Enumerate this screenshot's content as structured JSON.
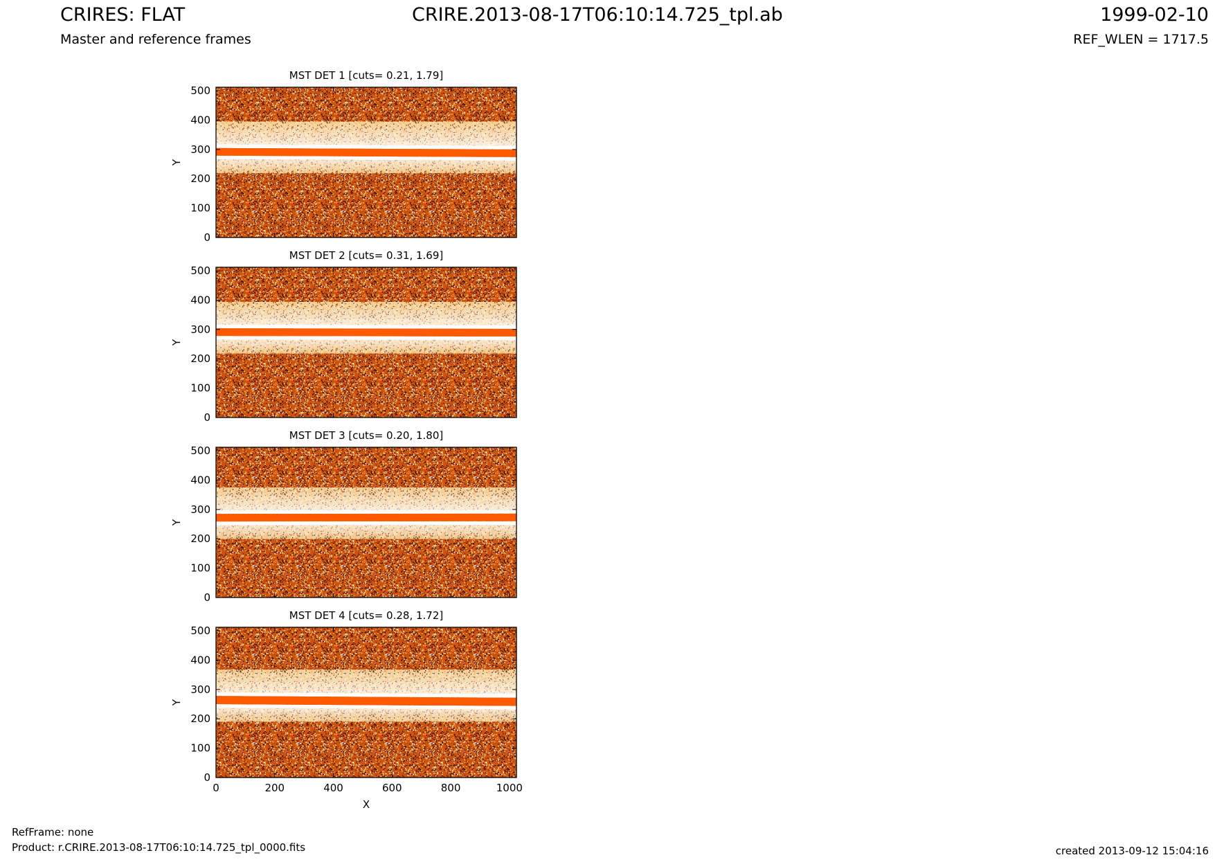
{
  "header": {
    "title": "CRIRES: FLAT",
    "subtitle": "Master and reference frames",
    "file": "CRIRE.2013-08-17T06:10:14.725_tpl.ab",
    "date": "1999-02-10",
    "ref_wlen": "REF_WLEN = 1717.5"
  },
  "footer": {
    "refframe": "RefFrame: none",
    "product": "Product: r.CRIRE.2013-08-17T06:10:14.725_tpl_0000.fits",
    "created": "created 2013-09-12 15:04:16"
  },
  "colors": {
    "band": "#ff5a00",
    "dark": "#2a0a00",
    "mid": "#c2420a",
    "light": "#f7b040",
    "pale": "#fff4cf"
  },
  "chart_data": [
    {
      "type": "heatmap",
      "title": "MST DET 1 [cuts= 0.21, 1.79]",
      "cuts": [
        0.21,
        1.79
      ],
      "colormap": "gist_heat",
      "xlabel": "",
      "ylabel": "Y",
      "xlim": [
        0,
        1024
      ],
      "ylim": [
        0,
        512
      ],
      "xticks": [],
      "yticks": [
        0,
        100,
        200,
        300,
        400,
        500
      ],
      "band": {
        "y_center_start": 292,
        "y_center_end": 287,
        "half_width": 13
      }
    },
    {
      "type": "heatmap",
      "title": "MST DET 2 [cuts= 0.31, 1.69]",
      "cuts": [
        0.31,
        1.69
      ],
      "colormap": "gist_heat",
      "xlabel": "",
      "ylabel": "Y",
      "xlim": [
        0,
        1024
      ],
      "ylim": [
        0,
        512
      ],
      "xticks": [],
      "yticks": [
        0,
        100,
        200,
        300,
        400,
        500
      ],
      "band": {
        "y_center_start": 291,
        "y_center_end": 289,
        "half_width": 13
      }
    },
    {
      "type": "heatmap",
      "title": "MST DET 3 [cuts= 0.20, 1.80]",
      "cuts": [
        0.2,
        1.8
      ],
      "colormap": "gist_heat",
      "xlabel": "",
      "ylabel": "Y",
      "xlim": [
        0,
        1024
      ],
      "ylim": [
        0,
        512
      ],
      "xticks": [],
      "yticks": [
        0,
        100,
        200,
        300,
        400,
        500
      ],
      "band": {
        "y_center_start": 272,
        "y_center_end": 273,
        "half_width": 13
      }
    },
    {
      "type": "heatmap",
      "title": "MST DET 4 [cuts= 0.28, 1.72]",
      "cuts": [
        0.28,
        1.72
      ],
      "colormap": "gist_heat",
      "xlabel": "X",
      "ylabel": "Y",
      "xlim": [
        0,
        1024
      ],
      "ylim": [
        0,
        512
      ],
      "xticks": [
        0,
        200,
        400,
        600,
        800,
        1000
      ],
      "yticks": [
        0,
        100,
        200,
        300,
        400,
        500
      ],
      "band": {
        "y_center_start": 264,
        "y_center_end": 258,
        "half_width": 14
      }
    }
  ]
}
